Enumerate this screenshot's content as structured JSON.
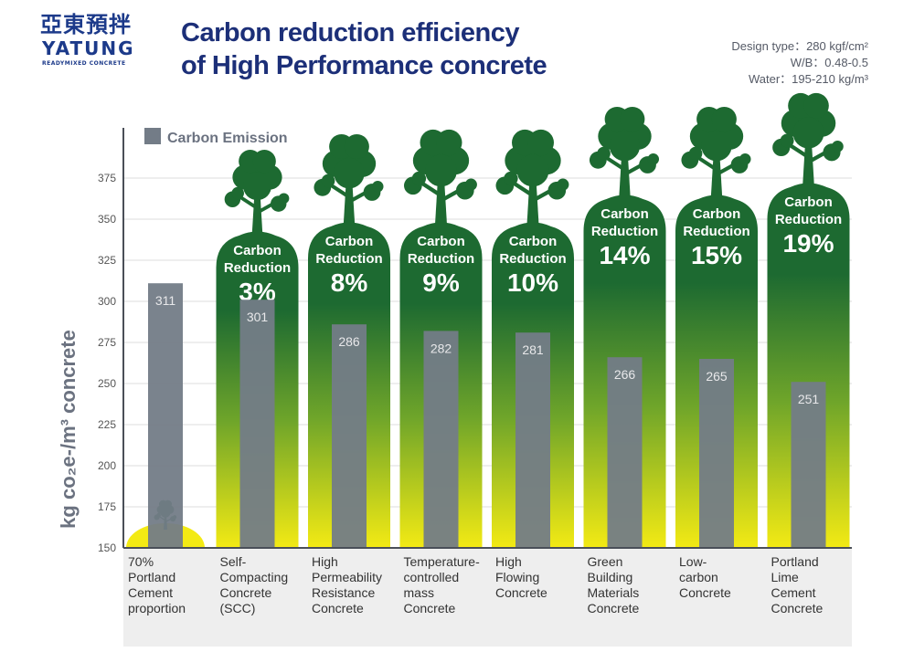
{
  "logo": {
    "chinese": "亞東預拌",
    "brand": "YATUNG",
    "sub": "READYMIXED CONCRETE"
  },
  "header": {
    "title_line1": "Carbon reduction efficiency",
    "title_line2": "of High Performance concrete"
  },
  "specs": [
    "Design type：280 kgf/cm²",
    "W/B：0.48-0.5",
    "Water：195-210 kg/m³"
  ],
  "chart_data": {
    "type": "bar",
    "ylabel": "kg co₂e-/m³ concrete",
    "ylim": [
      150,
      400
    ],
    "yticks": [
      150,
      175,
      200,
      225,
      250,
      275,
      300,
      325,
      350,
      375
    ],
    "grid": true,
    "legend_position": "top-left",
    "categories": [
      [
        "70%",
        "Portland",
        "Cement",
        "proportion"
      ],
      [
        "Self-",
        "Compacting",
        "Concrete",
        "(SCC)"
      ],
      [
        "High",
        "Permeability",
        "Resistance",
        "Concrete"
      ],
      [
        "Temperature-",
        "controlled",
        "mass",
        "Concrete"
      ],
      [
        "High",
        "Flowing",
        "Concrete"
      ],
      [
        "Green",
        "Building",
        "Materials",
        "Concrete"
      ],
      [
        "Low-",
        "carbon",
        "Concrete"
      ],
      [
        "Portland",
        "Lime",
        "Cement",
        "Concrete"
      ]
    ],
    "series": [
      {
        "name": "Carbon Emission",
        "values": [
          311,
          301,
          286,
          282,
          281,
          266,
          265,
          251
        ]
      }
    ],
    "reduction_label": [
      "Carbon",
      "Reduction"
    ],
    "reductions": [
      null,
      "3%",
      "8%",
      "9%",
      "10%",
      "14%",
      "15%",
      "19%"
    ],
    "colors": {
      "bar": "#737c87",
      "green": "#1d6a31",
      "yellow": "#f3ea14",
      "axis": "#4a4f58",
      "label_bg": "#eeeeee"
    }
  }
}
